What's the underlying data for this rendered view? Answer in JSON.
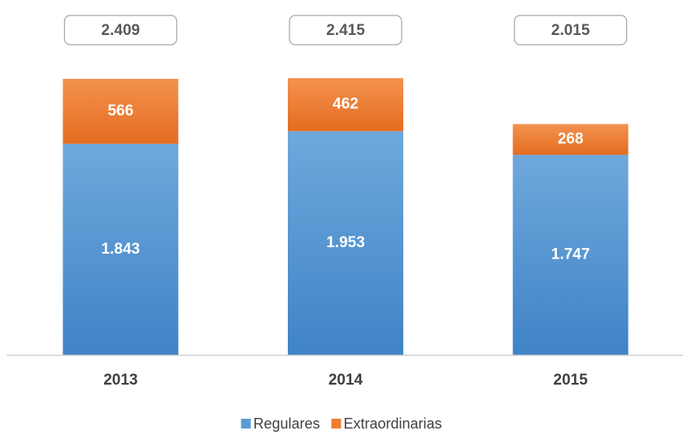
{
  "chart_data": {
    "type": "stacked_bar",
    "categories": [
      "2013",
      "2014",
      "2015"
    ],
    "series": [
      {
        "name": "Regulares",
        "color": "#5b9bd5",
        "values": [
          1843,
          1953,
          1747
        ],
        "value_labels": [
          "1.843",
          "1.953",
          "1.747"
        ]
      },
      {
        "name": "Extraordinarias",
        "color": "#ed7d31",
        "values": [
          566,
          462,
          268
        ],
        "value_labels": [
          "566",
          "462",
          "268"
        ]
      }
    ],
    "annotations": [
      "2.409",
      "2.415",
      "2.015"
    ],
    "ylim": [
      0,
      2600
    ],
    "legend": "bottom"
  }
}
